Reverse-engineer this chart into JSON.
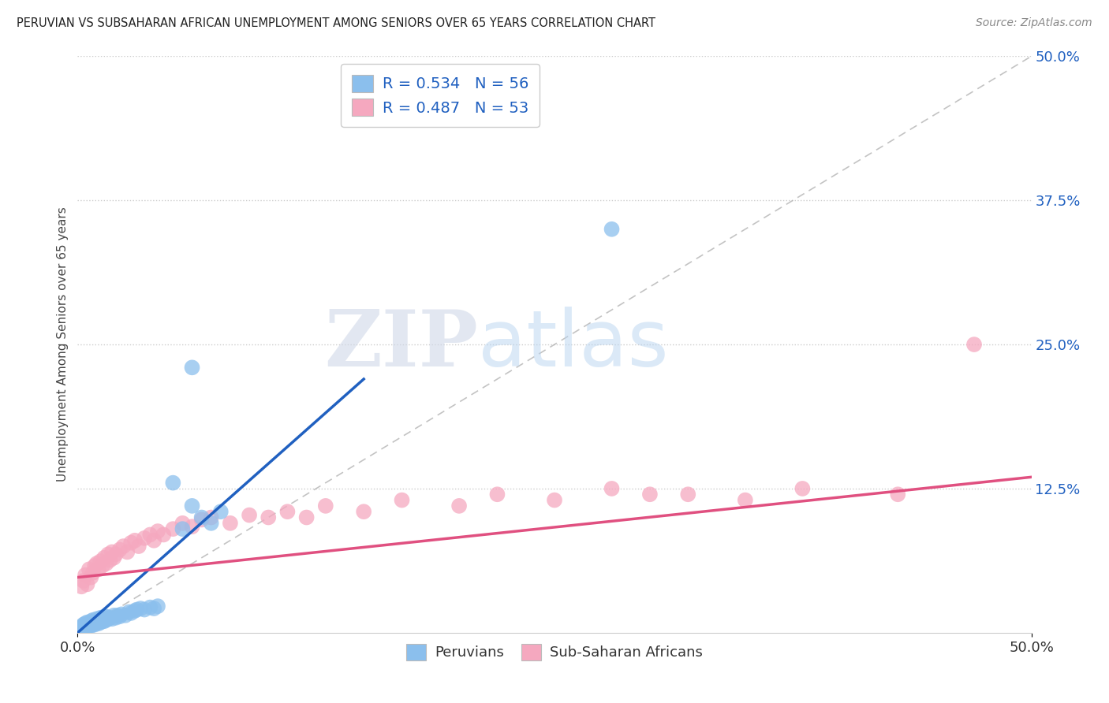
{
  "title": "PERUVIAN VS SUBSAHARAN AFRICAN UNEMPLOYMENT AMONG SENIORS OVER 65 YEARS CORRELATION CHART",
  "source_text": "Source: ZipAtlas.com",
  "ylabel": "Unemployment Among Seniors over 65 years",
  "xlim": [
    0,
    0.5
  ],
  "ylim": [
    0,
    0.5
  ],
  "ytick_labels_right": [
    "12.5%",
    "25.0%",
    "37.5%",
    "50.0%"
  ],
  "ytick_positions_right": [
    0.125,
    0.25,
    0.375,
    0.5
  ],
  "peruvian_color": "#8bbfed",
  "subsaharan_color": "#f5a8bf",
  "peruvian_line_color": "#2060c0",
  "subsaharan_line_color": "#e05080",
  "R_peruvian": 0.534,
  "N_peruvian": 56,
  "R_subsaharan": 0.487,
  "N_subsaharan": 53,
  "legend_label_peruvian": "Peruvians",
  "legend_label_subsaharan": "Sub-Saharan Africans",
  "watermark_zip": "ZIP",
  "watermark_atlas": "atlas",
  "background_color": "#ffffff",
  "peruvian_x": [
    0.002,
    0.003,
    0.003,
    0.004,
    0.004,
    0.005,
    0.005,
    0.005,
    0.006,
    0.006,
    0.007,
    0.007,
    0.007,
    0.008,
    0.008,
    0.008,
    0.009,
    0.009,
    0.01,
    0.01,
    0.011,
    0.011,
    0.012,
    0.012,
    0.013,
    0.013,
    0.014,
    0.014,
    0.015,
    0.015,
    0.016,
    0.017,
    0.018,
    0.019,
    0.02,
    0.021,
    0.022,
    0.023,
    0.025,
    0.027,
    0.028,
    0.03,
    0.031,
    0.033,
    0.035,
    0.038,
    0.04,
    0.042,
    0.05,
    0.055,
    0.06,
    0.065,
    0.07,
    0.075,
    0.28,
    0.06
  ],
  "peruvian_y": [
    0.005,
    0.006,
    0.007,
    0.006,
    0.008,
    0.005,
    0.007,
    0.009,
    0.006,
    0.008,
    0.006,
    0.008,
    0.01,
    0.007,
    0.009,
    0.011,
    0.007,
    0.01,
    0.009,
    0.012,
    0.008,
    0.011,
    0.009,
    0.013,
    0.01,
    0.013,
    0.01,
    0.014,
    0.011,
    0.014,
    0.012,
    0.013,
    0.012,
    0.015,
    0.013,
    0.015,
    0.014,
    0.016,
    0.015,
    0.018,
    0.017,
    0.019,
    0.02,
    0.021,
    0.02,
    0.022,
    0.021,
    0.023,
    0.13,
    0.09,
    0.11,
    0.1,
    0.095,
    0.105,
    0.35,
    0.23
  ],
  "subsaharan_x": [
    0.002,
    0.003,
    0.004,
    0.005,
    0.006,
    0.007,
    0.008,
    0.009,
    0.01,
    0.011,
    0.012,
    0.013,
    0.014,
    0.015,
    0.016,
    0.017,
    0.018,
    0.019,
    0.02,
    0.022,
    0.024,
    0.026,
    0.028,
    0.03,
    0.032,
    0.035,
    0.038,
    0.04,
    0.042,
    0.045,
    0.05,
    0.055,
    0.06,
    0.065,
    0.07,
    0.08,
    0.09,
    0.1,
    0.11,
    0.12,
    0.13,
    0.15,
    0.17,
    0.2,
    0.22,
    0.25,
    0.28,
    0.3,
    0.32,
    0.35,
    0.38,
    0.43,
    0.47
  ],
  "subsaharan_y": [
    0.04,
    0.045,
    0.05,
    0.042,
    0.055,
    0.048,
    0.052,
    0.058,
    0.06,
    0.055,
    0.062,
    0.058,
    0.065,
    0.06,
    0.068,
    0.063,
    0.07,
    0.065,
    0.068,
    0.072,
    0.075,
    0.07,
    0.078,
    0.08,
    0.075,
    0.082,
    0.085,
    0.08,
    0.088,
    0.085,
    0.09,
    0.095,
    0.092,
    0.098,
    0.1,
    0.095,
    0.102,
    0.1,
    0.105,
    0.1,
    0.11,
    0.105,
    0.115,
    0.11,
    0.12,
    0.115,
    0.125,
    0.12,
    0.12,
    0.115,
    0.125,
    0.12,
    0.25
  ],
  "peruvian_line_x": [
    0.0,
    0.15
  ],
  "peruvian_line_y": [
    0.0,
    0.22
  ],
  "subsaharan_line_x": [
    0.0,
    0.5
  ],
  "subsaharan_line_y": [
    0.048,
    0.135
  ]
}
